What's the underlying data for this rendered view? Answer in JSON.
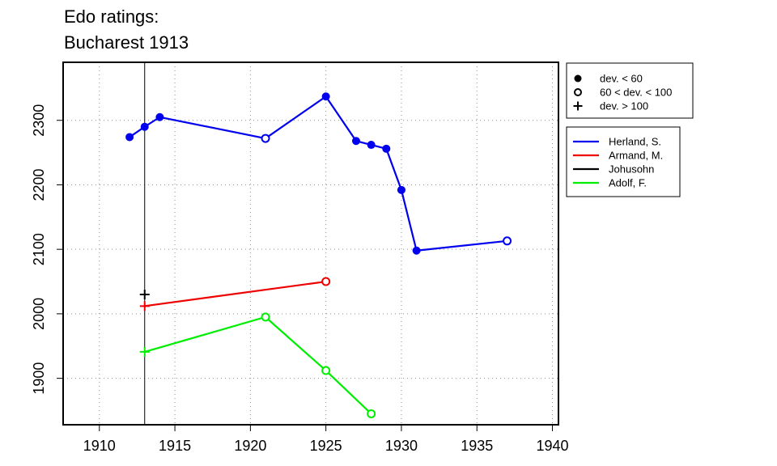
{
  "chart_data": {
    "type": "line",
    "title_lines": [
      "Edo ratings:",
      "Bucharest 1913"
    ],
    "xlabel": "",
    "ylabel": "",
    "xlim": [
      1907.6,
      1940.4
    ],
    "ylim": [
      1828,
      2390
    ],
    "x_ticks": [
      1910,
      1915,
      1920,
      1925,
      1930,
      1935,
      1940
    ],
    "y_ticks": [
      1900,
      2000,
      2100,
      2200,
      2300
    ],
    "grid": "dotted",
    "reference_x": 1913,
    "marker_legend": [
      {
        "marker": "dot",
        "label": "dev. < 60"
      },
      {
        "marker": "circle",
        "label": "60 < dev. < 100"
      },
      {
        "marker": "plus",
        "label": "dev. > 100"
      }
    ],
    "series": [
      {
        "name": "Herland, S.",
        "color": "#0000ee",
        "points": [
          {
            "x": 1912,
            "y": 2274,
            "marker": "dot"
          },
          {
            "x": 1913,
            "y": 2290,
            "marker": "dot"
          },
          {
            "x": 1914,
            "y": 2305,
            "marker": "dot"
          },
          {
            "x": 1921,
            "y": 2272,
            "marker": "circle"
          },
          {
            "x": 1925,
            "y": 2337,
            "marker": "dot"
          },
          {
            "x": 1927,
            "y": 2268,
            "marker": "dot"
          },
          {
            "x": 1928,
            "y": 2262,
            "marker": "dot"
          },
          {
            "x": 1929,
            "y": 2256,
            "marker": "dot"
          },
          {
            "x": 1930,
            "y": 2192,
            "marker": "dot"
          },
          {
            "x": 1931,
            "y": 2098,
            "marker": "dot"
          },
          {
            "x": 1937,
            "y": 2113,
            "marker": "circle"
          }
        ]
      },
      {
        "name": "Armand, M.",
        "color": "#ee0000",
        "points": [
          {
            "x": 1913,
            "y": 2012,
            "marker": "plus"
          },
          {
            "x": 1925,
            "y": 2050,
            "marker": "circle"
          }
        ]
      },
      {
        "name": "Johusohn",
        "color": "#000000",
        "points": [
          {
            "x": 1913,
            "y": 2030,
            "marker": "plus"
          }
        ]
      },
      {
        "name": "Adolf, F.",
        "color": "#00ee00",
        "points": [
          {
            "x": 1913,
            "y": 1941,
            "marker": "plus"
          },
          {
            "x": 1921,
            "y": 1995,
            "marker": "circle"
          },
          {
            "x": 1925,
            "y": 1912,
            "marker": "circle"
          },
          {
            "x": 1928,
            "y": 1845,
            "marker": "circle"
          }
        ]
      }
    ]
  }
}
